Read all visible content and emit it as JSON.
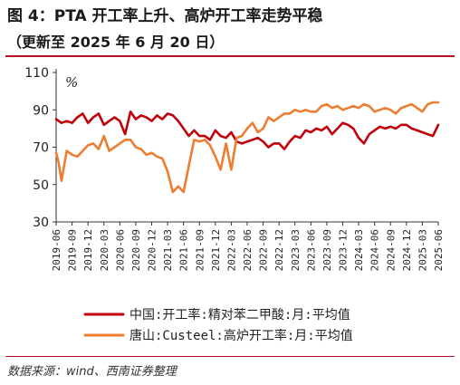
{
  "header": {
    "title": "图 4：PTA 开工率上升、高炉开工率走势平稳",
    "subtitle": "（更新至 2025 年 6 月 20 日）"
  },
  "footer": {
    "source": "数据来源：wind、西南证券整理"
  },
  "chart_data": {
    "type": "line",
    "unit_label": "%",
    "ylim": [
      30,
      110
    ],
    "yticks": [
      30,
      50,
      70,
      90,
      110
    ],
    "x_start": "2019-06",
    "x_end": "2025-06",
    "xtick_labels": [
      "2019-06",
      "2019-09",
      "2019-12",
      "2020-03",
      "2020-06",
      "2020-09",
      "2020-12",
      "2021-03",
      "2021-06",
      "2021-09",
      "2021-12",
      "2022-03",
      "2022-06",
      "2022-09",
      "2022-12",
      "2023-03",
      "2023-06",
      "2023-09",
      "2023-12",
      "2024-03",
      "2024-06",
      "2024-09",
      "2024-12",
      "2025-03",
      "2025-06"
    ],
    "grid": false,
    "legend_position": "bottom",
    "series": [
      {
        "name": "中国:开工率:精对苯二甲酸:月:平均值",
        "color": "#c0000a",
        "points": [
          [
            "2019-06-01",
            85
          ],
          [
            "2019-07-01",
            83
          ],
          [
            "2019-08-01",
            84
          ],
          [
            "2019-09-01",
            83
          ],
          [
            "2019-10-01",
            86
          ],
          [
            "2019-11-01",
            88
          ],
          [
            "2019-12-01",
            83
          ],
          [
            "2020-01-01",
            86
          ],
          [
            "2020-02-01",
            88
          ],
          [
            "2020-03-01",
            82
          ],
          [
            "2020-04-01",
            84
          ],
          [
            "2020-05-01",
            86
          ],
          [
            "2020-06-01",
            84
          ],
          [
            "2020-07-01",
            77
          ],
          [
            "2020-08-01",
            89
          ],
          [
            "2020-09-01",
            85
          ],
          [
            "2020-10-01",
            87
          ],
          [
            "2020-11-01",
            86
          ],
          [
            "2020-12-01",
            84
          ],
          [
            "2021-01-01",
            87
          ],
          [
            "2021-02-01",
            85
          ],
          [
            "2021-03-01",
            88
          ],
          [
            "2021-04-01",
            87
          ],
          [
            "2021-05-01",
            84
          ],
          [
            "2021-06-01",
            80
          ],
          [
            "2021-07-01",
            76
          ],
          [
            "2021-08-01",
            79
          ],
          [
            "2021-09-01",
            76
          ],
          [
            "2021-10-01",
            76
          ],
          [
            "2021-11-01",
            74
          ],
          [
            "2021-12-01",
            79
          ],
          [
            "2022-01-01",
            76
          ],
          [
            "2022-02-01",
            75
          ],
          [
            "2022-03-01",
            78
          ],
          [
            "2022-04-01",
            73
          ],
          [
            "2022-05-01",
            72
          ],
          [
            "2022-06-01",
            73
          ],
          [
            "2022-07-01",
            74
          ],
          [
            "2022-08-01",
            75
          ],
          [
            "2022-09-01",
            73
          ],
          [
            "2022-10-01",
            70
          ],
          [
            "2022-11-01",
            72
          ],
          [
            "2022-12-01",
            72
          ],
          [
            "2023-01-01",
            69
          ],
          [
            "2023-02-01",
            73
          ],
          [
            "2023-03-01",
            76
          ],
          [
            "2023-04-01",
            75
          ],
          [
            "2023-05-01",
            79
          ],
          [
            "2023-06-01",
            78
          ],
          [
            "2023-07-01",
            80
          ],
          [
            "2023-08-01",
            79
          ],
          [
            "2023-09-01",
            81
          ],
          [
            "2023-10-01",
            77
          ],
          [
            "2023-11-01",
            80
          ],
          [
            "2023-12-01",
            83
          ],
          [
            "2024-01-01",
            82
          ],
          [
            "2024-02-01",
            80
          ],
          [
            "2024-03-01",
            75
          ],
          [
            "2024-04-01",
            72
          ],
          [
            "2024-05-01",
            77
          ],
          [
            "2024-06-01",
            79
          ],
          [
            "2024-07-01",
            81
          ],
          [
            "2024-08-01",
            80
          ],
          [
            "2024-09-01",
            81
          ],
          [
            "2024-10-01",
            80
          ],
          [
            "2024-11-01",
            82
          ],
          [
            "2024-12-01",
            82
          ],
          [
            "2025-01-01",
            80
          ],
          [
            "2025-02-01",
            79
          ],
          [
            "2025-03-01",
            78
          ],
          [
            "2025-04-01",
            77
          ],
          [
            "2025-05-01",
            76
          ],
          [
            "2025-06-01",
            82
          ]
        ]
      },
      {
        "name": "唐山:Custeel:高炉开工率:月:平均值",
        "color": "#ed7d31",
        "points": [
          [
            "2019-06-01",
            67
          ],
          [
            "2019-06-15",
            62
          ],
          [
            "2019-07-01",
            52
          ],
          [
            "2019-08-01",
            68
          ],
          [
            "2019-09-01",
            66
          ],
          [
            "2019-10-01",
            65
          ],
          [
            "2019-11-01",
            68
          ],
          [
            "2019-12-01",
            71
          ],
          [
            "2020-01-01",
            72
          ],
          [
            "2020-02-01",
            69
          ],
          [
            "2020-03-01",
            76
          ],
          [
            "2020-04-01",
            68
          ],
          [
            "2020-05-01",
            70
          ],
          [
            "2020-06-01",
            72
          ],
          [
            "2020-07-01",
            74
          ],
          [
            "2020-08-01",
            74
          ],
          [
            "2020-09-01",
            70
          ],
          [
            "2020-10-01",
            69
          ],
          [
            "2020-11-01",
            66
          ],
          [
            "2020-12-01",
            67
          ],
          [
            "2021-01-01",
            65
          ],
          [
            "2021-02-01",
            64
          ],
          [
            "2021-03-01",
            57
          ],
          [
            "2021-04-01",
            46
          ],
          [
            "2021-05-01",
            49
          ],
          [
            "2021-06-01",
            46
          ],
          [
            "2021-07-01",
            60
          ],
          [
            "2021-08-01",
            74
          ],
          [
            "2021-09-01",
            73
          ],
          [
            "2021-10-01",
            74
          ],
          [
            "2021-11-01",
            71
          ],
          [
            "2021-12-01",
            65
          ],
          [
            "2022-01-01",
            58
          ],
          [
            "2022-02-01",
            72
          ],
          [
            "2022-03-01",
            58
          ],
          [
            "2022-04-01",
            75
          ],
          [
            "2022-05-01",
            76
          ],
          [
            "2022-06-01",
            80
          ],
          [
            "2022-07-01",
            83
          ],
          [
            "2022-08-01",
            78
          ],
          [
            "2022-09-01",
            80
          ],
          [
            "2022-10-01",
            86
          ],
          [
            "2022-11-01",
            84
          ],
          [
            "2022-12-01",
            86
          ],
          [
            "2023-01-01",
            88
          ],
          [
            "2023-02-01",
            88
          ],
          [
            "2023-03-01",
            90
          ],
          [
            "2023-04-01",
            89
          ],
          [
            "2023-05-01",
            90
          ],
          [
            "2023-06-01",
            89
          ],
          [
            "2023-07-01",
            89
          ],
          [
            "2023-08-01",
            92
          ],
          [
            "2023-09-01",
            93
          ],
          [
            "2023-10-01",
            91
          ],
          [
            "2023-11-01",
            92
          ],
          [
            "2023-12-01",
            90
          ],
          [
            "2024-01-01",
            91
          ],
          [
            "2024-02-01",
            92
          ],
          [
            "2024-03-01",
            91
          ],
          [
            "2024-04-01",
            93
          ],
          [
            "2024-05-01",
            92
          ],
          [
            "2024-06-01",
            89
          ],
          [
            "2024-07-01",
            90
          ],
          [
            "2024-08-01",
            91
          ],
          [
            "2024-09-01",
            90
          ],
          [
            "2024-10-01",
            88
          ],
          [
            "2024-11-01",
            91
          ],
          [
            "2024-12-01",
            92
          ],
          [
            "2025-01-01",
            93
          ],
          [
            "2025-02-01",
            91
          ],
          [
            "2025-03-01",
            89
          ],
          [
            "2025-04-01",
            93
          ],
          [
            "2025-05-01",
            94
          ],
          [
            "2025-06-01",
            94
          ]
        ]
      }
    ]
  }
}
